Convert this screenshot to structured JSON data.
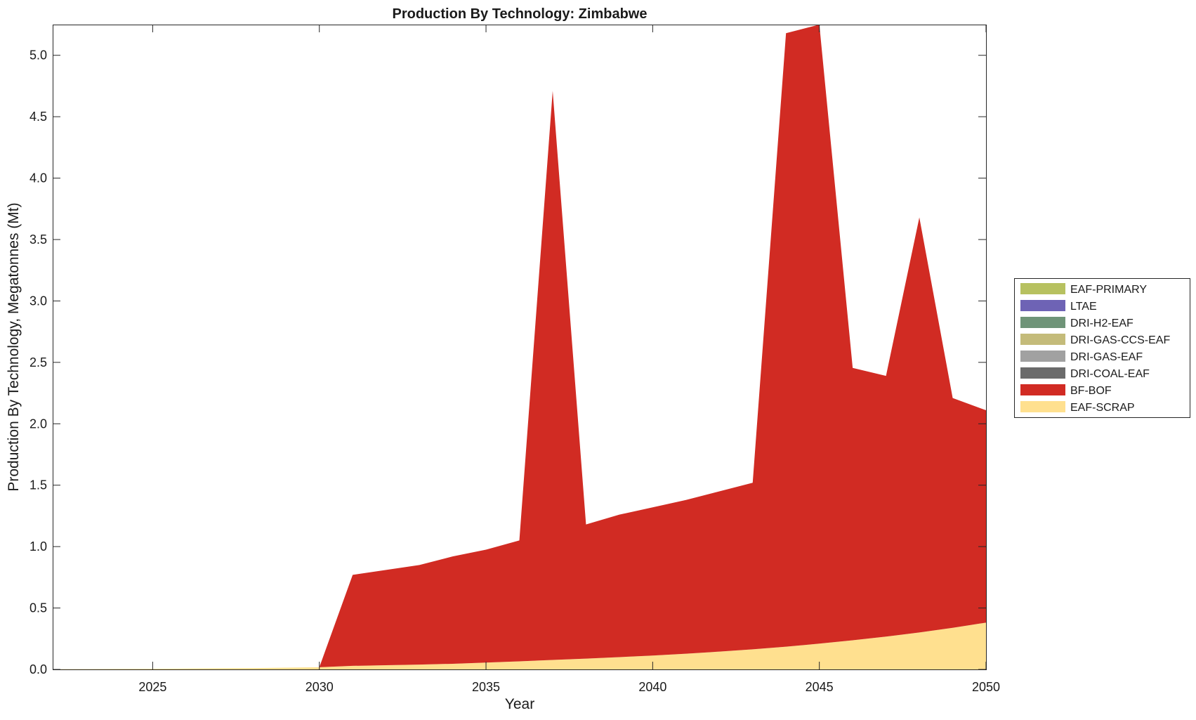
{
  "chart_data": {
    "type": "area",
    "stacked": true,
    "title": "Production By Technology: Zimbabwe",
    "xlabel": "Year",
    "ylabel": "Production By Technology, Megatonnes (Mt)",
    "xlim": [
      2022,
      2050
    ],
    "ylim": [
      0,
      5.25
    ],
    "xticks": [
      2025,
      2030,
      2035,
      2040,
      2045,
      2050
    ],
    "yticks": [
      0.0,
      0.5,
      1.0,
      1.5,
      2.0,
      2.5,
      3.0,
      3.5,
      4.0,
      4.5,
      5.0
    ],
    "ytick_labels": [
      "0.0",
      "0.5",
      "1.0",
      "1.5",
      "2.0",
      "2.5",
      "3.0",
      "3.5",
      "4.0",
      "4.5",
      "5.0"
    ],
    "grid": false,
    "legend_position": "right",
    "x": [
      2022,
      2023,
      2024,
      2025,
      2026,
      2027,
      2028,
      2029,
      2030,
      2031,
      2032,
      2033,
      2034,
      2035,
      2036,
      2037,
      2038,
      2039,
      2040,
      2041,
      2042,
      2043,
      2044,
      2045,
      2046,
      2047,
      2048,
      2049,
      2050
    ],
    "series": [
      {
        "name": "EAF-SCRAP",
        "color": "#ffe08f",
        "values": [
          0.002,
          0.003,
          0.004,
          0.005,
          0.007,
          0.009,
          0.011,
          0.014,
          0.018,
          0.029,
          0.034,
          0.039,
          0.046,
          0.056,
          0.066,
          0.077,
          0.088,
          0.1,
          0.113,
          0.128,
          0.145,
          0.164,
          0.185,
          0.21,
          0.237,
          0.267,
          0.301,
          0.339,
          0.381
        ]
      },
      {
        "name": "BF-BOF",
        "color": "#d12b23",
        "values": [
          0,
          0,
          0,
          0,
          0,
          0,
          0,
          0,
          0,
          0.741,
          0.776,
          0.811,
          0.874,
          0.919,
          0.984,
          4.633,
          1.092,
          1.16,
          1.207,
          1.252,
          1.305,
          1.356,
          4.995,
          5.04,
          2.218,
          2.123,
          3.379,
          1.871,
          1.729
        ]
      },
      {
        "name": "DRI-COAL-EAF",
        "color": "#6b6b6b",
        "values": [
          0,
          0,
          0,
          0,
          0,
          0,
          0,
          0,
          0,
          0,
          0,
          0,
          0,
          0,
          0,
          0,
          0,
          0,
          0,
          0,
          0,
          0,
          0,
          0,
          0,
          0,
          0,
          0,
          0
        ]
      },
      {
        "name": "DRI-GAS-EAF",
        "color": "#a1a1a1",
        "values": [
          0,
          0,
          0,
          0,
          0,
          0,
          0,
          0,
          0,
          0,
          0,
          0,
          0,
          0,
          0,
          0,
          0,
          0,
          0,
          0,
          0,
          0,
          0,
          0,
          0,
          0,
          0,
          0,
          0
        ]
      },
      {
        "name": "DRI-GAS-CCS-EAF",
        "color": "#c4bb7a",
        "values": [
          0,
          0,
          0,
          0,
          0,
          0,
          0,
          0,
          0,
          0,
          0,
          0,
          0,
          0,
          0,
          0,
          0,
          0,
          0,
          0,
          0,
          0,
          0,
          0,
          0,
          0,
          0,
          0,
          0
        ]
      },
      {
        "name": "DRI-H2-EAF",
        "color": "#6f9478",
        "values": [
          0,
          0,
          0,
          0,
          0,
          0,
          0,
          0,
          0,
          0,
          0,
          0,
          0,
          0,
          0,
          0,
          0,
          0,
          0,
          0,
          0,
          0,
          0,
          0,
          0,
          0,
          0,
          0,
          0
        ]
      },
      {
        "name": "LTAE",
        "color": "#6e63b5",
        "values": [
          0,
          0,
          0,
          0,
          0,
          0,
          0,
          0,
          0,
          0,
          0,
          0,
          0,
          0,
          0,
          0,
          0,
          0,
          0,
          0,
          0,
          0,
          0,
          0,
          0,
          0,
          0,
          0,
          0
        ]
      },
      {
        "name": "EAF-PRIMARY",
        "color": "#b7c160",
        "values": [
          0,
          0,
          0,
          0,
          0,
          0,
          0,
          0,
          0,
          0,
          0,
          0,
          0,
          0,
          0,
          0,
          0,
          0,
          0,
          0,
          0,
          0,
          0,
          0,
          0,
          0,
          0,
          0,
          0
        ]
      }
    ],
    "legend_order": [
      "EAF-PRIMARY",
      "LTAE",
      "DRI-H2-EAF",
      "DRI-GAS-CCS-EAF",
      "DRI-GAS-EAF",
      "DRI-COAL-EAF",
      "BF-BOF",
      "EAF-SCRAP"
    ]
  }
}
